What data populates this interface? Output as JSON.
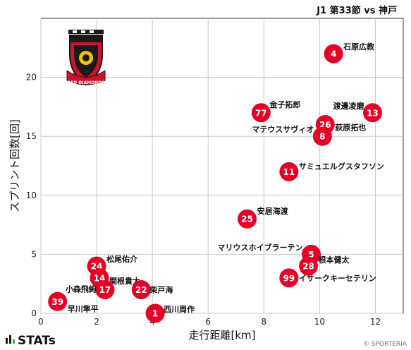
{
  "chart_data": {
    "type": "scatter",
    "title": "J1 第33節 vs 神戸",
    "xlabel": "走行距離[km]",
    "ylabel": "スプリント回数[回]",
    "xlim": [
      0,
      13
    ],
    "ylim": [
      0,
      25
    ],
    "xticks": [
      0,
      2,
      4,
      6,
      8,
      10,
      12
    ],
    "yticks": [
      0,
      5,
      10,
      15,
      20
    ],
    "grid": true,
    "marker_color": "#e60026",
    "points": [
      {
        "number": "4",
        "name": "石原広教",
        "x": 10.5,
        "y": 22
      },
      {
        "number": "13",
        "name": "渡邊凌磨",
        "x": 11.9,
        "y": 17
      },
      {
        "number": "26",
        "name": "荻原拓也",
        "x": 10.2,
        "y": 16
      },
      {
        "number": "8",
        "name": "マテウスサヴィオ",
        "x": 10.1,
        "y": 15
      },
      {
        "number": "77",
        "name": "金子拓郎",
        "x": 7.9,
        "y": 17
      },
      {
        "number": "11",
        "name": "サミュエルグスタフソン",
        "x": 8.9,
        "y": 12
      },
      {
        "number": "25",
        "name": "安居海渡",
        "x": 7.4,
        "y": 8
      },
      {
        "number": "5",
        "name": "マリウスホイブラーテン",
        "x": 9.7,
        "y": 5
      },
      {
        "number": "28",
        "name": "根本健太",
        "x": 9.6,
        "y": 4
      },
      {
        "number": "99",
        "name": "イサークキーセテリン",
        "x": 8.9,
        "y": 3
      },
      {
        "number": "24",
        "name": "松尾佑介",
        "x": 2.0,
        "y": 4
      },
      {
        "number": "14",
        "name": "関根貴大",
        "x": 2.1,
        "y": 3
      },
      {
        "number": "17",
        "name": "小森飛絢",
        "x": 2.3,
        "y": 2
      },
      {
        "number": "22",
        "name": "柴戸海",
        "x": 3.6,
        "y": 2
      },
      {
        "number": "39",
        "name": "早川隼平",
        "x": 0.6,
        "y": 1
      },
      {
        "number": "1",
        "name": "西川周作",
        "x": 4.1,
        "y": 0
      }
    ]
  },
  "logo": {
    "text": "RED DIAMONDS"
  },
  "footer": {
    "brand": "STATs",
    "credit": "© SPORTERIA"
  }
}
